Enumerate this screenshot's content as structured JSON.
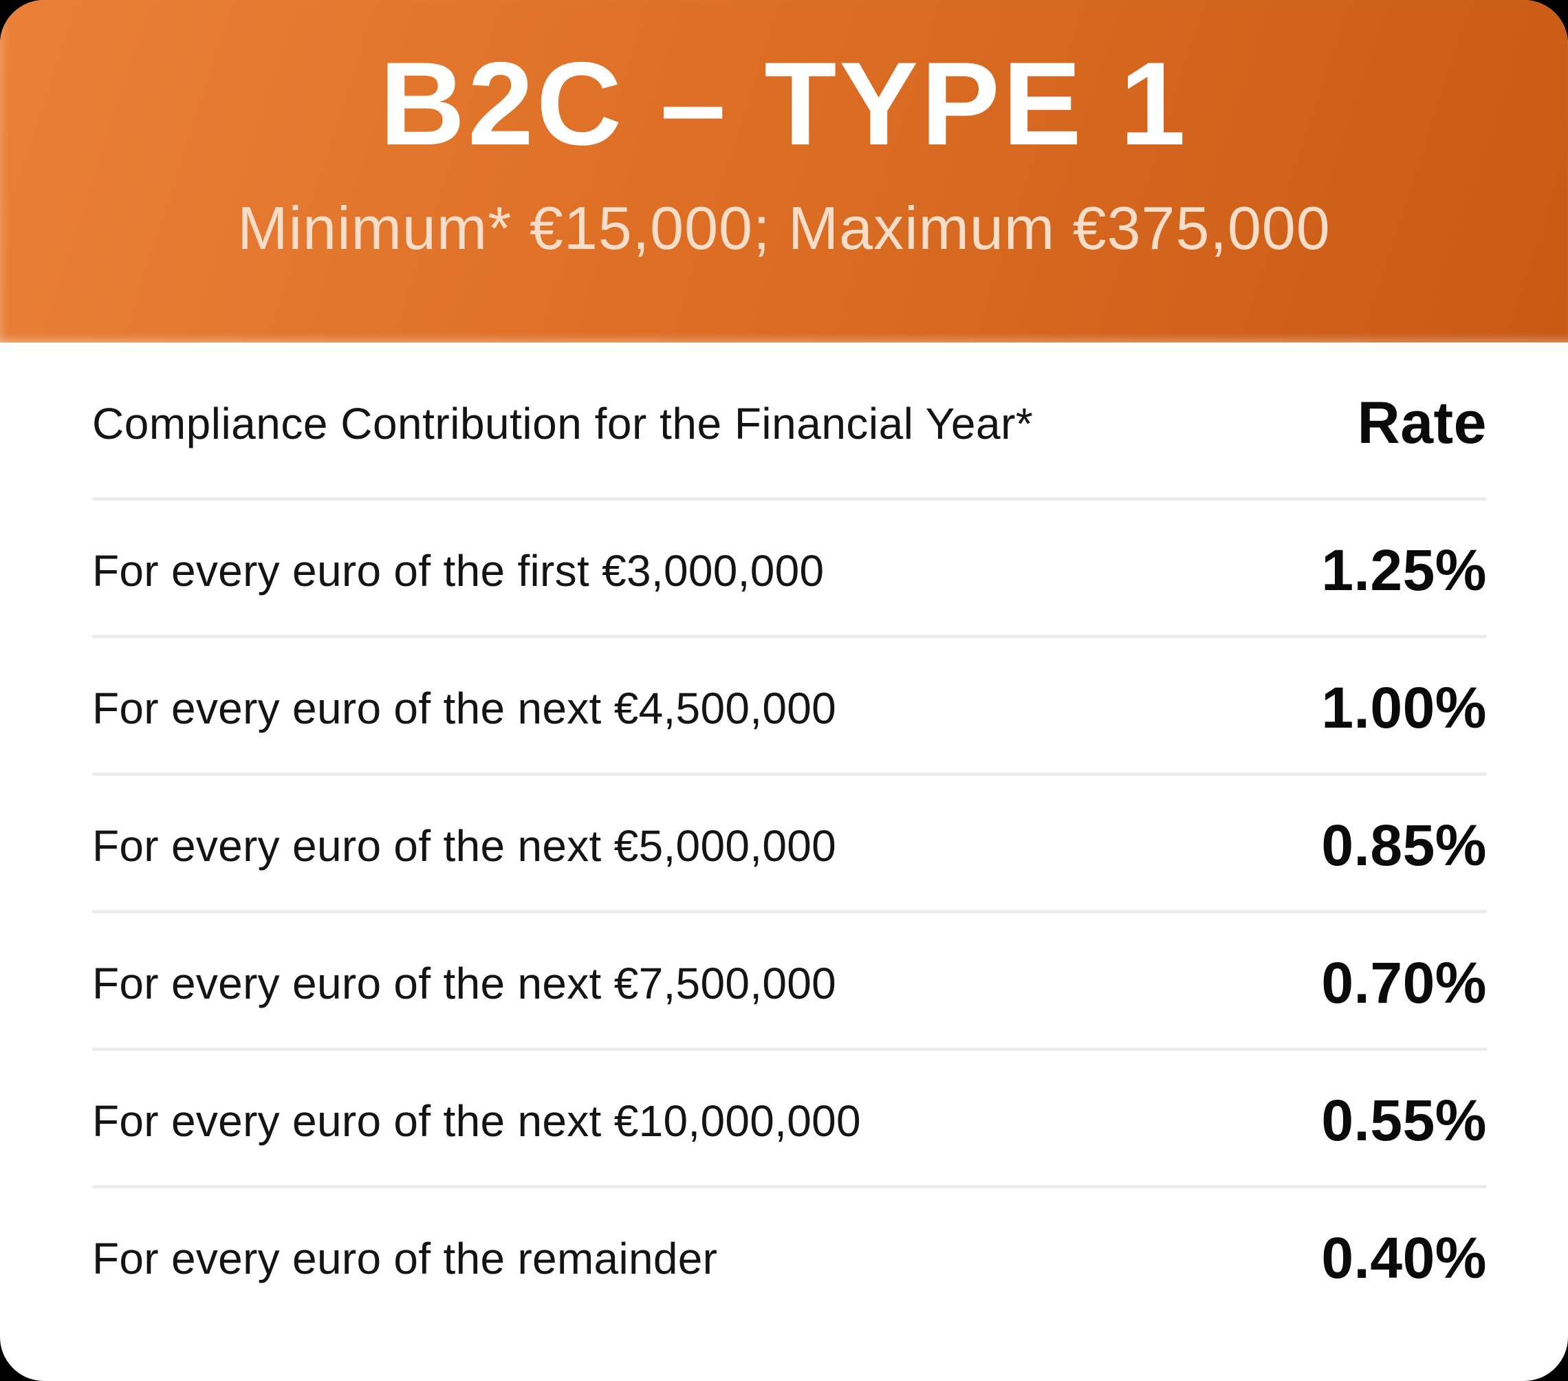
{
  "header": {
    "title": "B2C – TYPE 1",
    "subtitle": "Minimum* €15,000; Maximum €375,000"
  },
  "table": {
    "columns": {
      "contribution": "Compliance Contribution for the Financial Year*",
      "rate": "Rate"
    },
    "rows": [
      {
        "label": "For every euro of the first €3,000,000",
        "rate": "1.25%"
      },
      {
        "label": "For every euro of the next €4,500,000",
        "rate": "1.00%"
      },
      {
        "label": "For every euro of the next €5,000,000",
        "rate": "0.85%"
      },
      {
        "label": "For every euro of the next €7,500,000",
        "rate": "0.70%"
      },
      {
        "label": "For every euro of the next €10,000,000",
        "rate": "0.55%"
      },
      {
        "label": "For every euro of the remainder",
        "rate": "0.40%"
      }
    ]
  },
  "colors": {
    "header_gradient_start": "#EA8038",
    "header_gradient_end": "#C85A15",
    "subtitle_text": "#F8DDC9",
    "title_text": "#FFFFFF",
    "body_text": "#141414",
    "divider": "#ECECEC",
    "card_background": "#FFFFFF"
  }
}
